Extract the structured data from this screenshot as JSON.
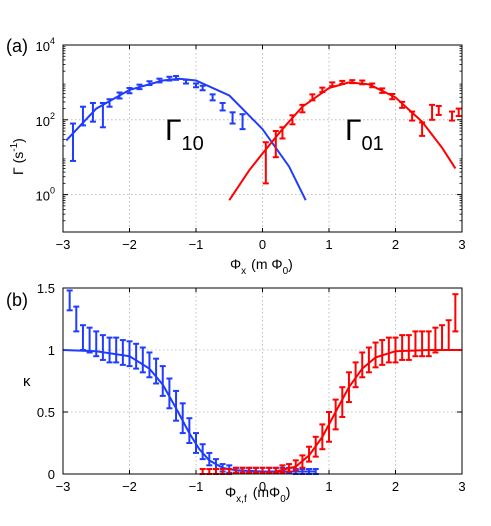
{
  "panels": [
    {
      "panel_label": "(a)",
      "xlabel": "Φ",
      "xlabel_sub": "x",
      "xlabel_unit_pre": "(m Φ",
      "xlabel_unit_sub": "0",
      "xlabel_unit_post": ")",
      "ylabel": "Γ (s",
      "ylabel_sup": "-1",
      "ylabel_post": ")",
      "xticks": [
        "−3",
        "−2",
        "−1",
        "0",
        "1",
        "2",
        "3"
      ],
      "yticks": [
        {
          "base": "10",
          "exp": "0"
        },
        {
          "base": "10",
          "exp": "2"
        },
        {
          "base": "10",
          "exp": "4"
        }
      ],
      "annotations": [
        {
          "text": "Γ",
          "sub": "10"
        },
        {
          "text": "Γ",
          "sub": "01"
        }
      ]
    },
    {
      "panel_label": "(b)",
      "xlabel": "Φ",
      "xlabel_sub": "x,f",
      "xlabel_unit_pre": "(mΦ",
      "xlabel_unit_sub": "0",
      "xlabel_unit_post": ")",
      "ylabel": "κ",
      "xticks": [
        "−3",
        "−2",
        "−1",
        "0",
        "1",
        "2",
        "3"
      ],
      "yticks": [
        "0",
        "0.5",
        "1",
        "1.5"
      ]
    }
  ],
  "colors": {
    "blue": "#1f3cff",
    "red": "#ff0000",
    "axis": "#000000",
    "grid": "#b0b0b0"
  },
  "chart_data": [
    {
      "type": "scatter",
      "xlim": [
        -3,
        3
      ],
      "ylim_log10": [
        -1,
        4
      ],
      "yscale": "log",
      "grid": true,
      "series": [
        {
          "name": "Γ₁₀",
          "color": "blue",
          "points": [
            [
              -2.85,
              1.4,
              0.5,
              0.5
            ],
            [
              -2.7,
              2.05,
              0.2,
              0.3
            ],
            [
              -2.55,
              2.15,
              0.2,
              0.3
            ],
            [
              -2.4,
              2.1,
              0.3,
              0.35
            ],
            [
              -2.3,
              2.45,
              0.1,
              0.1
            ],
            [
              -2.15,
              2.65,
              0.08,
              0.08
            ],
            [
              -2.0,
              2.78,
              0.07,
              0.07
            ],
            [
              -1.85,
              2.88,
              0.06,
              0.06
            ],
            [
              -1.7,
              2.98,
              0.05,
              0.05
            ],
            [
              -1.55,
              3.05,
              0.05,
              0.05
            ],
            [
              -1.4,
              3.1,
              0.05,
              0.05
            ],
            [
              -1.3,
              3.12,
              0.05,
              0.05
            ],
            [
              -1.15,
              3.02,
              0.05,
              0.05
            ],
            [
              -1.0,
              2.92,
              0.05,
              0.05
            ],
            [
              -0.9,
              2.85,
              0.06,
              0.06
            ],
            [
              -0.75,
              2.6,
              0.08,
              0.08
            ],
            [
              -0.6,
              2.35,
              0.1,
              0.1
            ],
            [
              -0.45,
              2.05,
              0.15,
              0.15
            ],
            [
              -0.3,
              1.95,
              0.2,
              0.2
            ]
          ],
          "fit": [
            [
              -2.95,
              1.45
            ],
            [
              -2.5,
              2.3
            ],
            [
              -2.0,
              2.8
            ],
            [
              -1.5,
              3.05
            ],
            [
              -1.25,
              3.1
            ],
            [
              -1.0,
              3.05
            ],
            [
              -0.5,
              2.65
            ],
            [
              0.0,
              1.75
            ],
            [
              0.4,
              0.75
            ],
            [
              0.65,
              -0.15
            ]
          ]
        },
        {
          "name": "Γ₀₁",
          "color": "red",
          "points": [
            [
              0.05,
              0.85,
              0.55,
              0.55
            ],
            [
              0.2,
              1.35,
              0.35,
              0.35
            ],
            [
              0.3,
              1.65,
              0.15,
              0.15
            ],
            [
              0.45,
              2.0,
              0.12,
              0.12
            ],
            [
              0.6,
              2.3,
              0.1,
              0.1
            ],
            [
              0.75,
              2.6,
              0.08,
              0.08
            ],
            [
              0.9,
              2.8,
              0.06,
              0.06
            ],
            [
              1.05,
              2.95,
              0.05,
              0.05
            ],
            [
              1.2,
              3.0,
              0.04,
              0.04
            ],
            [
              1.35,
              3.02,
              0.04,
              0.04
            ],
            [
              1.5,
              3.0,
              0.05,
              0.05
            ],
            [
              1.65,
              2.92,
              0.05,
              0.05
            ],
            [
              1.8,
              2.78,
              0.06,
              0.06
            ],
            [
              1.95,
              2.62,
              0.07,
              0.07
            ],
            [
              2.1,
              2.4,
              0.08,
              0.08
            ],
            [
              2.25,
              2.1,
              0.12,
              0.12
            ],
            [
              2.4,
              1.75,
              0.18,
              0.18
            ],
            [
              2.55,
              2.2,
              0.2,
              0.2
            ],
            [
              2.65,
              2.25,
              0.12,
              0.12
            ],
            [
              2.85,
              2.1,
              0.12,
              0.12
            ],
            [
              2.95,
              2.2,
              0.1,
              0.1
            ]
          ],
          "fit": [
            [
              -0.5,
              -0.15
            ],
            [
              -0.2,
              0.65
            ],
            [
              0.0,
              1.1
            ],
            [
              0.3,
              1.75
            ],
            [
              0.6,
              2.35
            ],
            [
              1.0,
              2.85
            ],
            [
              1.3,
              3.0
            ],
            [
              1.6,
              2.95
            ],
            [
              2.0,
              2.6
            ],
            [
              2.4,
              1.95
            ],
            [
              2.7,
              1.25
            ],
            [
              2.9,
              0.7
            ]
          ]
        }
      ]
    },
    {
      "type": "scatter",
      "xlim": [
        -3,
        3
      ],
      "ylim": [
        0,
        1.5
      ],
      "grid": true,
      "series": [
        {
          "name": "blue",
          "color": "blue",
          "points": [
            [
              -2.9,
              1.4,
              0.08
            ],
            [
              -2.8,
              1.25,
              0.1
            ],
            [
              -2.7,
              1.1,
              0.1
            ],
            [
              -2.6,
              1.08,
              0.1
            ],
            [
              -2.5,
              1.05,
              0.1
            ],
            [
              -2.4,
              1.02,
              0.1
            ],
            [
              -2.3,
              1.0,
              0.1
            ],
            [
              -2.2,
              1.0,
              0.1
            ],
            [
              -2.1,
              0.98,
              0.1
            ],
            [
              -2.0,
              0.97,
              0.1
            ],
            [
              -1.9,
              0.95,
              0.1
            ],
            [
              -1.8,
              0.92,
              0.1
            ],
            [
              -1.7,
              0.88,
              0.1
            ],
            [
              -1.6,
              0.83,
              0.1
            ],
            [
              -1.5,
              0.75,
              0.12
            ],
            [
              -1.4,
              0.65,
              0.12
            ],
            [
              -1.3,
              0.55,
              0.12
            ],
            [
              -1.2,
              0.45,
              0.12
            ],
            [
              -1.1,
              0.35,
              0.1
            ],
            [
              -1.0,
              0.25,
              0.08
            ],
            [
              -0.9,
              0.18,
              0.06
            ],
            [
              -0.8,
              0.12,
              0.05
            ],
            [
              -0.7,
              0.08,
              0.04
            ],
            [
              -0.6,
              0.05,
              0.03
            ],
            [
              -0.5,
              0.04,
              0.03
            ],
            [
              -0.4,
              0.03,
              0.02
            ],
            [
              -0.3,
              0.03,
              0.02
            ],
            [
              -0.2,
              0.03,
              0.02
            ],
            [
              -0.1,
              0.03,
              0.02
            ],
            [
              0.0,
              0.03,
              0.02
            ],
            [
              0.1,
              0.03,
              0.02
            ],
            [
              0.2,
              0.03,
              0.02
            ],
            [
              0.3,
              0.03,
              0.02
            ],
            [
              0.4,
              0.03,
              0.02
            ],
            [
              0.5,
              0.02,
              0.02
            ],
            [
              0.6,
              0.02,
              0.02
            ],
            [
              0.7,
              0.02,
              0.02
            ],
            [
              0.8,
              0.02,
              0.02
            ]
          ],
          "fit": [
            [
              -3.0,
              1.0
            ],
            [
              -2.5,
              0.99
            ],
            [
              -2.0,
              0.95
            ],
            [
              -1.7,
              0.85
            ],
            [
              -1.5,
              0.72
            ],
            [
              -1.3,
              0.53
            ],
            [
              -1.1,
              0.33
            ],
            [
              -0.95,
              0.2
            ],
            [
              -0.8,
              0.11
            ],
            [
              -0.6,
              0.05
            ],
            [
              -0.4,
              0.03
            ],
            [
              0.0,
              0.02
            ],
            [
              0.5,
              0.02
            ],
            [
              0.8,
              0.02
            ]
          ]
        },
        {
          "name": "red",
          "color": "red",
          "points": [
            [
              -0.9,
              0.02,
              0.02
            ],
            [
              -0.8,
              0.02,
              0.02
            ],
            [
              -0.7,
              0.02,
              0.02
            ],
            [
              -0.6,
              0.02,
              0.02
            ],
            [
              -0.5,
              0.02,
              0.02
            ],
            [
              -0.4,
              0.03,
              0.02
            ],
            [
              -0.3,
              0.03,
              0.02
            ],
            [
              -0.2,
              0.03,
              0.02
            ],
            [
              -0.1,
              0.03,
              0.02
            ],
            [
              0.0,
              0.03,
              0.02
            ],
            [
              0.1,
              0.03,
              0.02
            ],
            [
              0.2,
              0.03,
              0.02
            ],
            [
              0.3,
              0.04,
              0.03
            ],
            [
              0.4,
              0.05,
              0.03
            ],
            [
              0.5,
              0.07,
              0.04
            ],
            [
              0.6,
              0.1,
              0.05
            ],
            [
              0.7,
              0.16,
              0.06
            ],
            [
              0.8,
              0.22,
              0.08
            ],
            [
              0.9,
              0.3,
              0.1
            ],
            [
              1.0,
              0.38,
              0.12
            ],
            [
              1.1,
              0.48,
              0.12
            ],
            [
              1.2,
              0.58,
              0.12
            ],
            [
              1.3,
              0.7,
              0.12
            ],
            [
              1.4,
              0.8,
              0.1
            ],
            [
              1.5,
              0.88,
              0.1
            ],
            [
              1.6,
              0.92,
              0.1
            ],
            [
              1.7,
              0.96,
              0.1
            ],
            [
              1.8,
              0.98,
              0.1
            ],
            [
              1.9,
              1.0,
              0.1
            ],
            [
              2.0,
              1.0,
              0.1
            ],
            [
              2.1,
              1.02,
              0.1
            ],
            [
              2.2,
              1.02,
              0.1
            ],
            [
              2.3,
              1.05,
              0.1
            ],
            [
              2.4,
              1.05,
              0.1
            ],
            [
              2.5,
              1.05,
              0.1
            ],
            [
              2.6,
              1.08,
              0.1
            ],
            [
              2.7,
              1.1,
              0.1
            ],
            [
              2.8,
              1.12,
              0.12
            ],
            [
              2.9,
              1.3,
              0.15
            ]
          ],
          "fit": [
            [
              0.2,
              0.02
            ],
            [
              0.5,
              0.06
            ],
            [
              0.7,
              0.15
            ],
            [
              0.9,
              0.3
            ],
            [
              1.1,
              0.5
            ],
            [
              1.3,
              0.7
            ],
            [
              1.5,
              0.85
            ],
            [
              1.7,
              0.94
            ],
            [
              2.0,
              0.99
            ],
            [
              2.5,
              1.0
            ],
            [
              3.0,
              1.0
            ]
          ]
        }
      ]
    }
  ]
}
